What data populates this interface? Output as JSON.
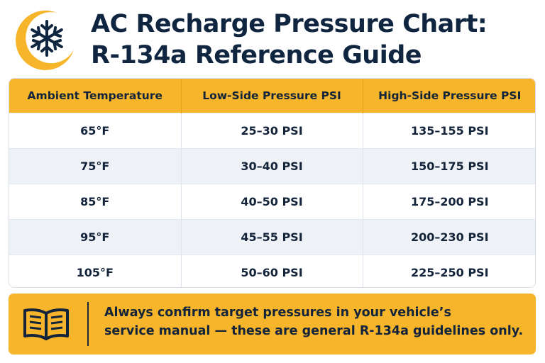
{
  "header": {
    "title_line1": "AC Recharge Pressure Chart:",
    "title_line2": "R-134a Reference Guide",
    "logo_icon": "snowflake-icon"
  },
  "table": {
    "columns": [
      "Ambient Temperature",
      "Low-Side Pressure PSI",
      "High-Side Pressure PSI"
    ],
    "rows": [
      [
        "65°F",
        "25–30 PSI",
        "135–155 PSI"
      ],
      [
        "75°F",
        "30–40 PSI",
        "150–175 PSI"
      ],
      [
        "85°F",
        "40–50 PSI",
        "175–200 PSI"
      ],
      [
        "95°F",
        "45–55 PSI",
        "200–230 PSI"
      ],
      [
        "105°F",
        "50–60 PSI",
        "225–250 PSI"
      ]
    ]
  },
  "note": {
    "icon": "book-icon",
    "line1": "Always confirm target pressures in your vehicle’s",
    "line2": "service manual — these are general R-134a guidelines only."
  },
  "colors": {
    "accent": "#f6b52a",
    "text": "#0f2540",
    "row_alt": "#eef1f6"
  }
}
